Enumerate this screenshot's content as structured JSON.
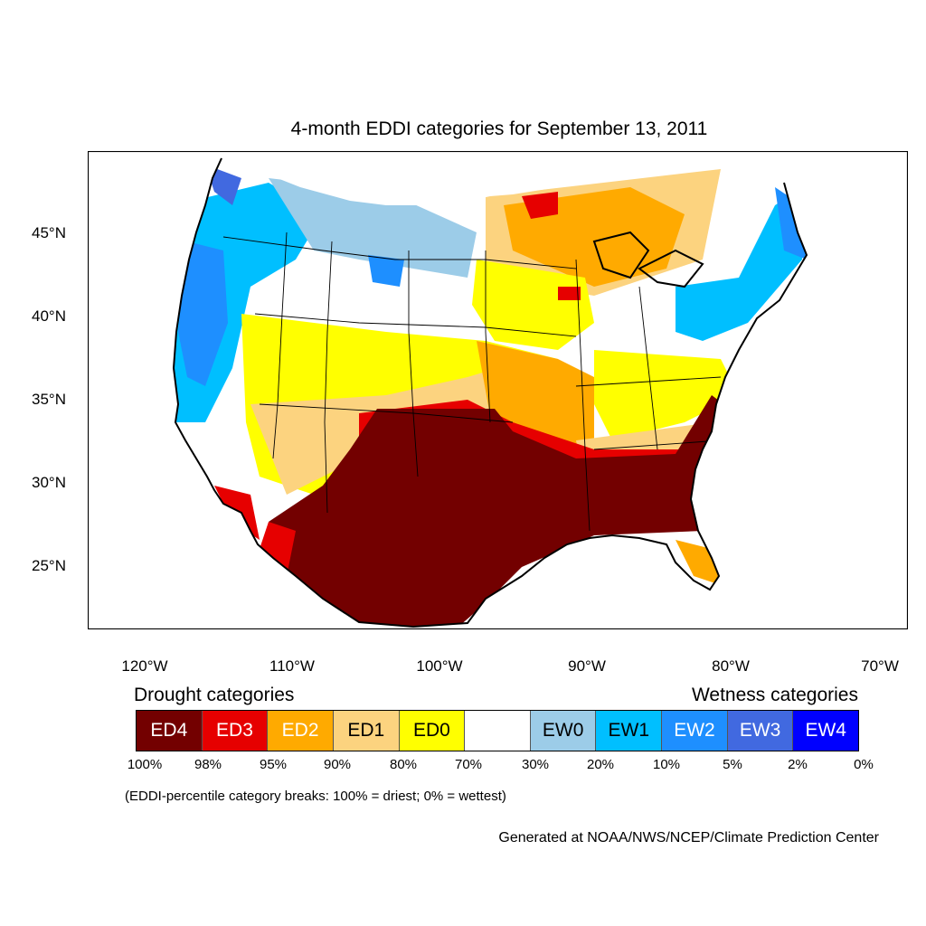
{
  "title": "4-month EDDI categories for September 13, 2011",
  "map": {
    "type": "choropleth",
    "region": "Contiguous United States",
    "lat_labels": [
      "45°N",
      "40°N",
      "35°N",
      "30°N",
      "25°N"
    ],
    "lon_labels": [
      "120°W",
      "110°W",
      "100°W",
      "90°W",
      "80°W",
      "70°W"
    ]
  },
  "legend": {
    "drought_heading": "Drought categories",
    "wetness_heading": "Wetness categories",
    "categories": [
      {
        "label": "ED4",
        "color": "#730000",
        "text_color": "#ffffff"
      },
      {
        "label": "ED3",
        "color": "#e60000",
        "text_color": "#ffffff"
      },
      {
        "label": "ED2",
        "color": "#ffaa00",
        "text_color": "#ffffff"
      },
      {
        "label": "ED1",
        "color": "#fcd37f",
        "text_color": "#000000"
      },
      {
        "label": "ED0",
        "color": "#ffff00",
        "text_color": "#000000"
      },
      {
        "label": "",
        "color": "#ffffff",
        "text_color": "#000000"
      },
      {
        "label": "EW0",
        "color": "#9ccce8",
        "text_color": "#000000"
      },
      {
        "label": "EW1",
        "color": "#00bfff",
        "text_color": "#000000"
      },
      {
        "label": "EW2",
        "color": "#1e8fff",
        "text_color": "#ffffff"
      },
      {
        "label": "EW3",
        "color": "#4169e0",
        "text_color": "#ffffff"
      },
      {
        "label": "EW4",
        "color": "#0000ff",
        "text_color": "#ffffff"
      }
    ],
    "percentiles": [
      "100%",
      "98%",
      "95%",
      "90%",
      "80%",
      "70%",
      "30%",
      "20%",
      "10%",
      "5%",
      "2%",
      "0%"
    ]
  },
  "footnote": "(EDDI-percentile category breaks: 100% = driest; 0% = wettest)",
  "credit": "Generated at NOAA/NWS/NCEP/Climate Prediction Center",
  "colors": {
    "ED4": "#730000",
    "ED3": "#e60000",
    "ED2": "#ffaa00",
    "ED1": "#fcd37f",
    "ED0": "#ffff00",
    "EW0": "#9ccce8",
    "EW1": "#00bfff",
    "EW2": "#1e8fff",
    "EW3": "#4169e0",
    "EW4": "#0000ff"
  }
}
